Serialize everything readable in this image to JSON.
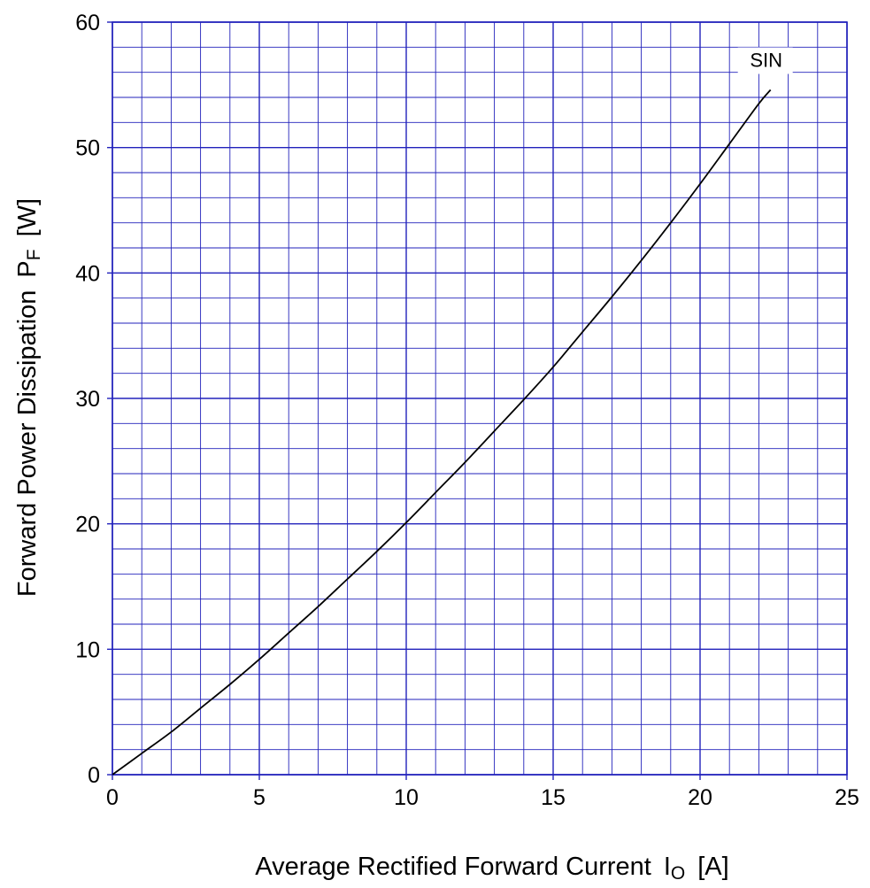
{
  "chart_data": {
    "type": "line",
    "title": "",
    "xlabel": "Average Rectified Forward Current",
    "xlabel_symbol": "I",
    "xlabel_subscript": "O",
    "xlabel_unit": "[A]",
    "ylabel": "Forward Power Dissipation",
    "ylabel_symbol": "P",
    "ylabel_subscript": "F",
    "ylabel_unit": "[W]",
    "xlim": [
      0,
      25
    ],
    "ylim": [
      0,
      60
    ],
    "x_major_ticks": [
      0,
      5,
      10,
      15,
      20,
      25
    ],
    "y_major_ticks": [
      0,
      10,
      20,
      30,
      40,
      50,
      60
    ],
    "x_minor_step": 1,
    "y_minor_step": 2,
    "grid": true,
    "colors": {
      "grid": "#2222bb",
      "line": "#000000",
      "background": "#ffffff"
    },
    "series": [
      {
        "name": "SIN",
        "x": [
          0,
          1,
          2,
          3,
          4,
          5,
          6,
          7,
          8,
          9,
          10,
          11,
          12,
          13,
          14,
          15,
          16,
          17,
          18,
          19,
          20,
          21,
          22,
          22.4
        ],
        "y": [
          0,
          1.7,
          3.4,
          5.3,
          7.2,
          9.2,
          11.3,
          13.4,
          15.6,
          17.8,
          20.1,
          22.5,
          24.9,
          27.4,
          29.9,
          32.5,
          35.3,
          38.1,
          41,
          44,
          47.1,
          50.3,
          53.5,
          54.6
        ]
      }
    ]
  }
}
